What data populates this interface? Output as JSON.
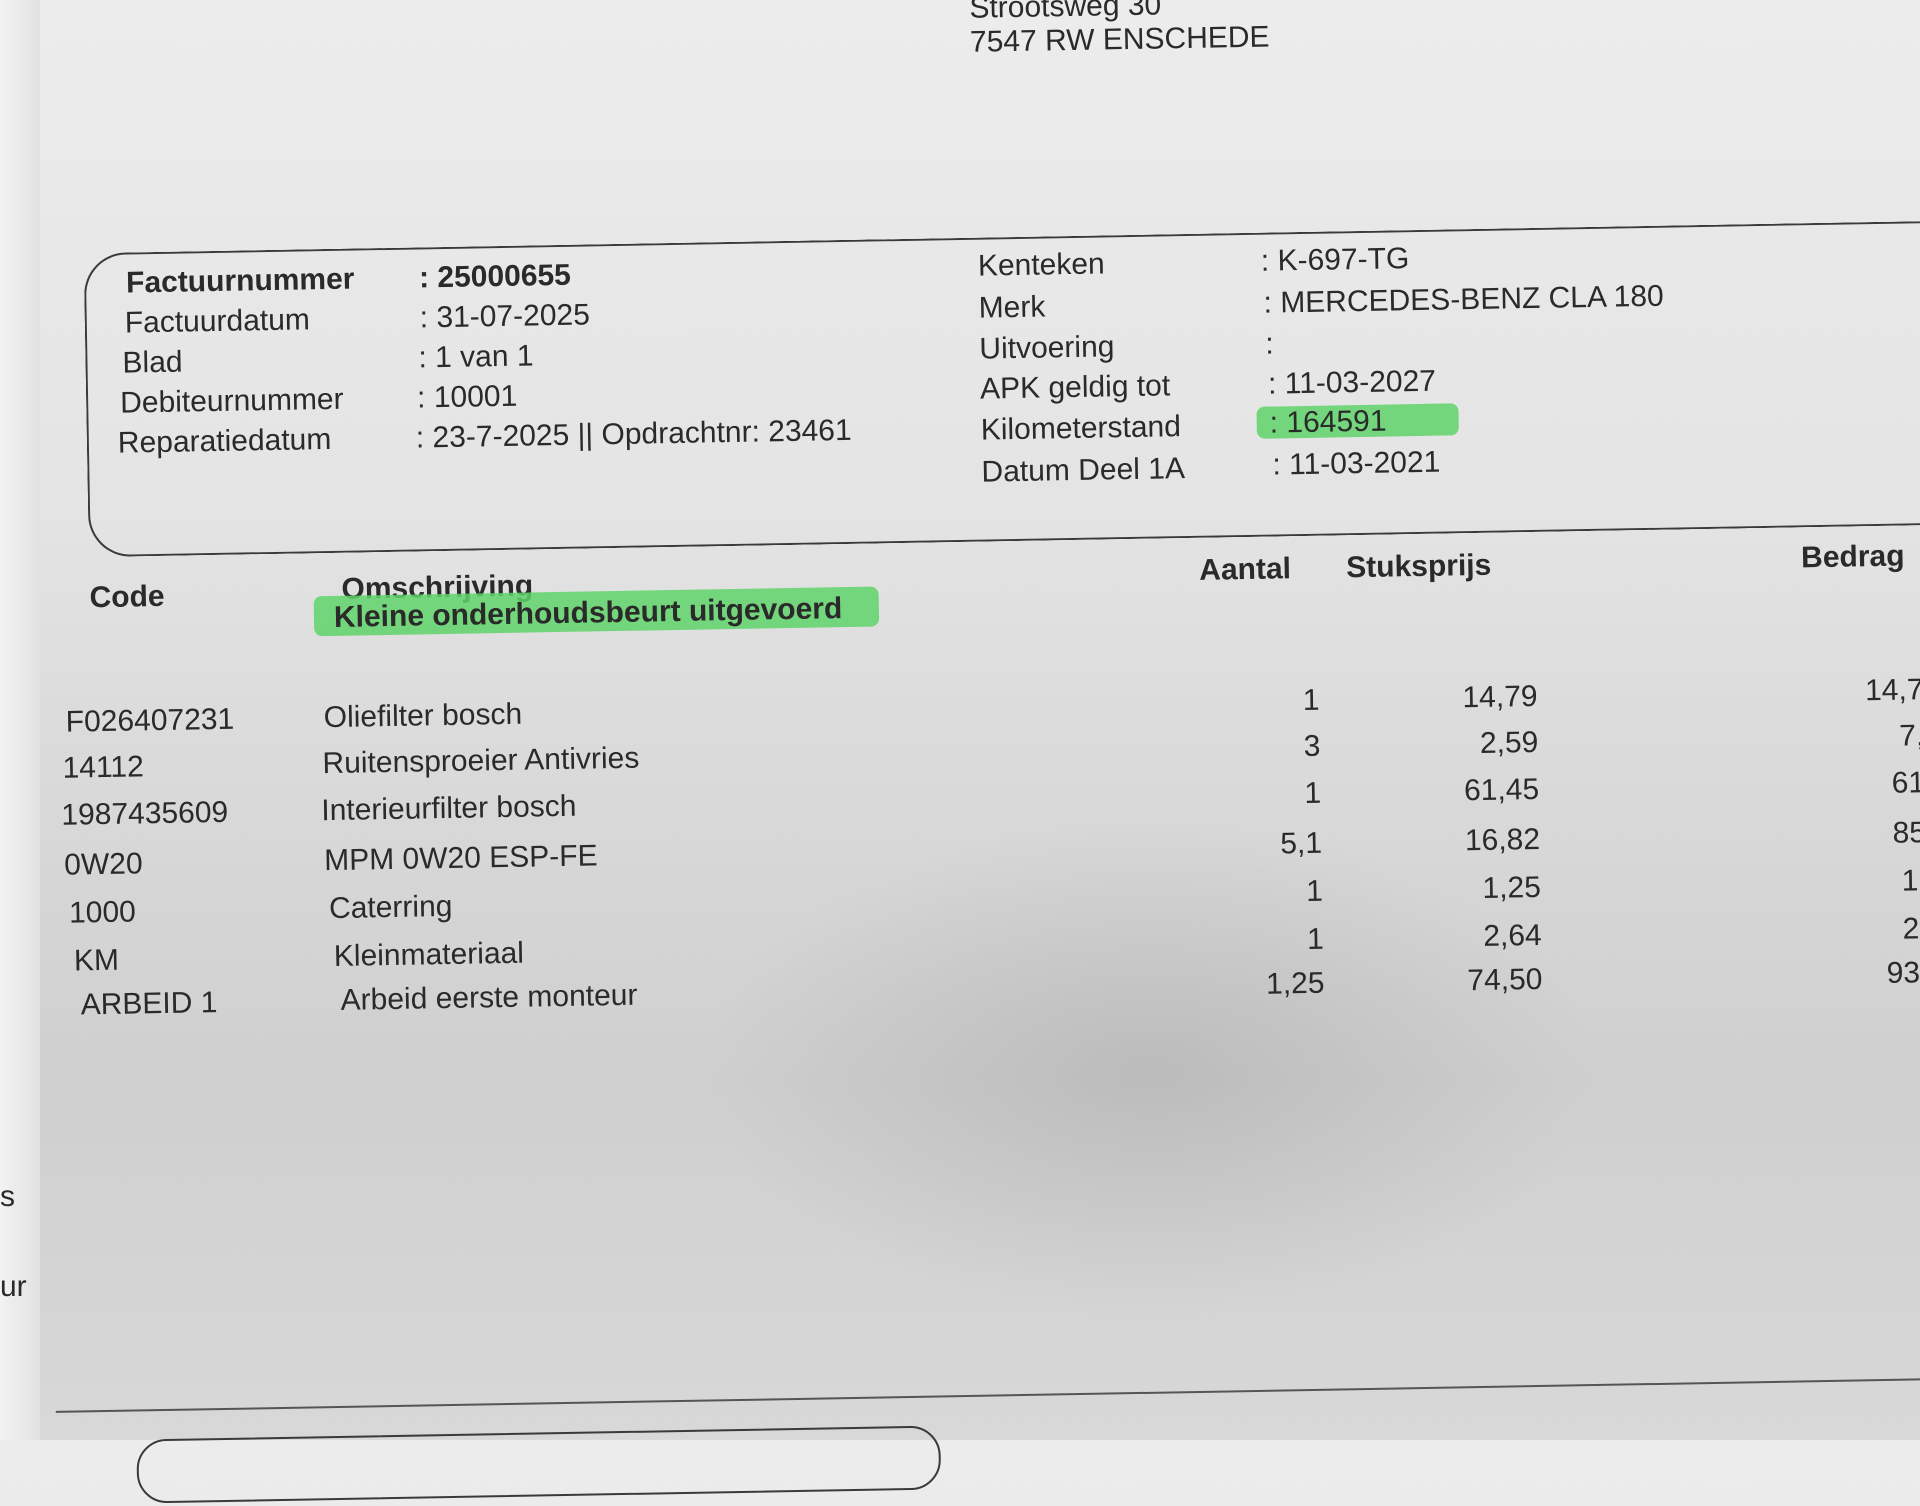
{
  "address": {
    "street": "Strootsweg 30",
    "city": "7547 RW ENSCHEDE"
  },
  "invoice_fields": [
    {
      "label": "Factuurnummer",
      "value": ": 25000655"
    },
    {
      "label": "Factuurdatum",
      "value": ": 31-07-2025"
    },
    {
      "label": "Blad",
      "value": ": 1 van 1"
    },
    {
      "label": "Debiteurnummer",
      "value": ": 10001"
    },
    {
      "label": "Reparatiedatum",
      "value": ": 23-7-2025 || Opdrachtnr: 23461"
    }
  ],
  "vehicle_fields": [
    {
      "label": "Kenteken",
      "value": ": K-697-TG"
    },
    {
      "label": "Merk",
      "value": ": MERCEDES-BENZ CLA 180"
    },
    {
      "label": "Uitvoering",
      "value": ":"
    },
    {
      "label": "APK geldig tot",
      "value": ": 11-03-2027"
    },
    {
      "label": "Kilometerstand",
      "value": ": 164591"
    },
    {
      "label": "Datum Deel 1A",
      "value": ": 11-03-2021"
    }
  ],
  "table": {
    "headers": {
      "code": "Code",
      "omschrijving": "Omschrijving",
      "aantal": "Aantal",
      "stuksprijs": "Stuksprijs",
      "bedrag": "Bedrag"
    },
    "section_title": "Kleine onderhoudsbeurt uitgevoerd",
    "rows": [
      {
        "code": "F026407231",
        "omschrijving": "Oliefilter bosch",
        "aantal": "1",
        "stuksprijs": "14,79",
        "bedrag": "14,7"
      },
      {
        "code": "14112",
        "omschrijving": "Ruitensproeier Antivries",
        "aantal": "3",
        "stuksprijs": "2,59",
        "bedrag": "7,"
      },
      {
        "code": "1987435609",
        "omschrijving": "Interieurfilter bosch",
        "aantal": "1",
        "stuksprijs": "61,45",
        "bedrag": "61"
      },
      {
        "code": "0W20",
        "omschrijving": "MPM 0W20 ESP-FE",
        "aantal": "5,1",
        "stuksprijs": "16,82",
        "bedrag": "85"
      },
      {
        "code": "1000",
        "omschrijving": "Caterring",
        "aantal": "1",
        "stuksprijs": "1,25",
        "bedrag": "1,"
      },
      {
        "code": "KM",
        "omschrijving": "Kleinmateriaal",
        "aantal": "1",
        "stuksprijs": "2,64",
        "bedrag": "2,"
      },
      {
        "code": "ARBEID 1",
        "omschrijving": "Arbeid eerste monteur",
        "aantal": "1,25",
        "stuksprijs": "74,50",
        "bedrag": "93,"
      }
    ]
  },
  "margin_fragments": [
    "s",
    "ur"
  ],
  "colors": {
    "highlight": "#5fd36a",
    "paper": "#e4e4e4",
    "ink": "#2a2a2a"
  }
}
